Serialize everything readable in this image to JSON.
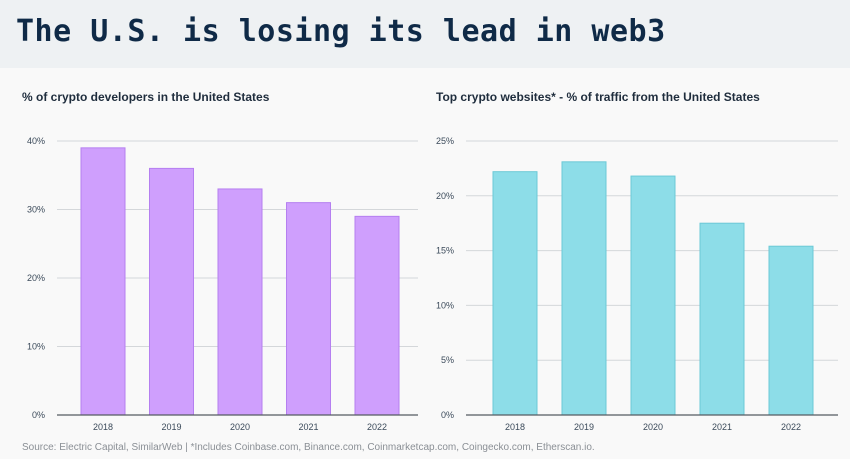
{
  "header": {
    "title": "The U.S. is losing its lead in web3"
  },
  "charts": [
    {
      "title": "% of crypto developers in the United States",
      "color": "#cf9ffd",
      "stroke": "#b57ff0"
    },
    {
      "title": "Top crypto websites* - % of traffic from the United States",
      "color": "#8ddde8",
      "stroke": "#6cc9d6"
    }
  ],
  "chart_data": [
    {
      "type": "bar",
      "title": "% of crypto developers in the United States",
      "categories": [
        "2018",
        "2019",
        "2020",
        "2021",
        "2022"
      ],
      "values": [
        39,
        36,
        33,
        31,
        29
      ],
      "ylim": [
        0,
        40
      ],
      "yticks": [
        0,
        10,
        20,
        30,
        40
      ],
      "ytick_labels": [
        "0%",
        "10%",
        "20%",
        "30%",
        "40%"
      ],
      "grid": true
    },
    {
      "type": "bar",
      "title": "Top crypto websites* - % of traffic from the United States",
      "categories": [
        "2018",
        "2019",
        "2020",
        "2021",
        "2022"
      ],
      "values": [
        22.2,
        23.1,
        21.8,
        17.5,
        15.4
      ],
      "ylim": [
        0,
        25
      ],
      "yticks": [
        0,
        5,
        10,
        15,
        20,
        25
      ],
      "ytick_labels": [
        "0%",
        "5%",
        "10%",
        "15%",
        "20%",
        "25%"
      ],
      "grid": true
    }
  ],
  "footer": {
    "source": "Source: Electric Capital, SimilarWeb | *Includes Coinbase.com, Binance.com, Coinmarketcap.com, Coingecko.com, Etherscan.io."
  }
}
